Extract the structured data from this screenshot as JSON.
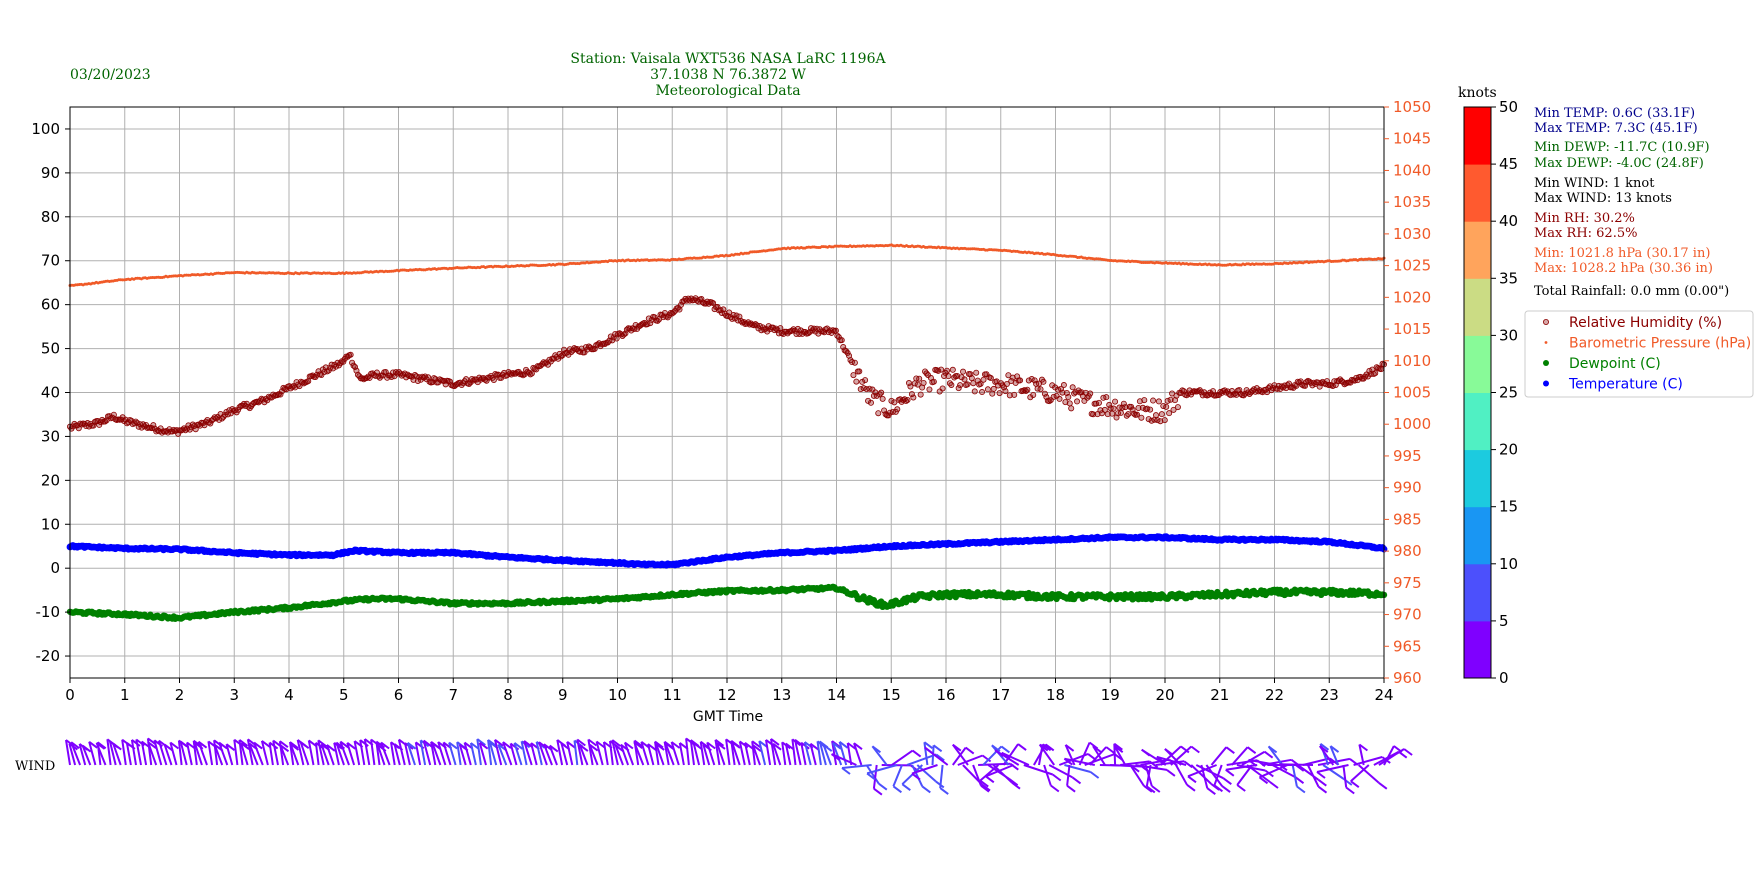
{
  "date": "03/20/2023",
  "header": {
    "line1": "Station:  Vaisala WXT536  NASA LaRC 1196A",
    "line2": "37.1038 N 76.3872 W",
    "line3": "Meteorological Data"
  },
  "stats": {
    "min_temp": "Min TEMP: 0.6C (33.1F)",
    "max_temp": "Max TEMP: 7.3C (45.1F)",
    "min_dewp": "Min DEWP: -11.7C (10.9F)",
    "max_dewp": "Max DEWP: -4.0C (24.8F)",
    "min_wind": "Min WIND: 1 knot",
    "max_wind": "Max WIND: 13 knots",
    "min_rh": "Min RH: 30.2%",
    "max_rh": "Max RH: 62.5%",
    "min_press": "Min: 1021.8 hPa (30.17 in)",
    "max_press": "Max: 1028.2 hPa (30.36 in)",
    "rainfall": "Total Rainfall: 0.0 mm (0.00\")"
  },
  "colors": {
    "temperature": "#0000ff",
    "dewpoint": "#008000",
    "humidity": "#8b0000",
    "pressure": "#f05a28",
    "temp_text": "#00008b",
    "dewp_text": "#006400",
    "rh_text": "#8b0000",
    "press_text": "#f05a28",
    "header_text": "#006400"
  },
  "wind_label": "WIND",
  "colorbar": {
    "title": "knots",
    "ticks": [
      "0",
      "5",
      "10",
      "15",
      "20",
      "25",
      "30",
      "35",
      "40",
      "45",
      "50"
    ],
    "colors": [
      "#7f00ff",
      "#4c50fc",
      "#1996f3",
      "#1ccbdf",
      "#50f0c3",
      "#88fa98",
      "#cbdc84",
      "#ffa45c",
      "#ff5a2f",
      "#ff0000"
    ]
  },
  "chart_data": {
    "type": "scatter",
    "xlabel": "GMT Time",
    "x_ticks": [
      "0",
      "1",
      "2",
      "3",
      "4",
      "5",
      "6",
      "7",
      "8",
      "9",
      "10",
      "11",
      "12",
      "13",
      "14",
      "15",
      "16",
      "17",
      "18",
      "19",
      "20",
      "21",
      "22",
      "23",
      "24"
    ],
    "xlim": [
      0,
      24
    ],
    "left_ylim": [
      -25,
      105
    ],
    "left_ticks": [
      "-20",
      "-10",
      "0",
      "10",
      "20",
      "30",
      "40",
      "50",
      "60",
      "70",
      "80",
      "90",
      "100"
    ],
    "right_ylim": [
      960,
      1050
    ],
    "right_ticks": [
      "960",
      "965",
      "970",
      "975",
      "980",
      "985",
      "990",
      "995",
      "1000",
      "1005",
      "1010",
      "1015",
      "1020",
      "1025",
      "1030",
      "1035",
      "1040",
      "1045",
      "1050"
    ],
    "grid": true,
    "legend_position": "right",
    "series": [
      {
        "name": "Relative Humidity (%)",
        "axis": "left",
        "marker": "hollow-circle",
        "hours": [
          0,
          0.5,
          0.8,
          1,
          1.5,
          1.9,
          2.5,
          3,
          3.5,
          4,
          4.5,
          5,
          5.1,
          5.3,
          5.6,
          6,
          6.5,
          7,
          7.5,
          8,
          8.5,
          9,
          9.5,
          10,
          10.5,
          11,
          11.3,
          11.7,
          12,
          12.5,
          13,
          13.5,
          14,
          14.3,
          14.6,
          15,
          15.5,
          16,
          16.5,
          17,
          17.5,
          18,
          18.5,
          19,
          19.5,
          20,
          20.3,
          21,
          21.5,
          22,
          22.5,
          23,
          23.5,
          24
        ],
        "values": [
          32,
          33,
          34.5,
          33.5,
          32,
          31,
          33,
          36,
          38,
          41,
          44,
          47,
          49,
          43,
          44,
          44,
          43,
          42,
          43,
          44,
          45,
          49,
          50,
          53,
          56,
          58,
          61.5,
          60,
          58,
          55,
          54,
          54,
          54,
          46,
          39,
          36,
          42,
          43,
          42,
          42,
          41,
          40,
          38,
          37,
          36,
          36,
          40,
          40,
          40,
          41,
          42,
          42,
          43,
          46
        ]
      },
      {
        "name": "Barometric Pressure (hPa)",
        "axis": "right",
        "marker": "small-dot",
        "hours": [
          0,
          1,
          2,
          3,
          4,
          5,
          6,
          7,
          8,
          9,
          10,
          11,
          12,
          13,
          14,
          15,
          16,
          17,
          18,
          19,
          20,
          21,
          22,
          23,
          24
        ],
        "values": [
          1021.8,
          1022.8,
          1023.4,
          1023.9,
          1023.8,
          1023.8,
          1024.2,
          1024.6,
          1024.9,
          1025.2,
          1025.8,
          1025.9,
          1026.6,
          1027.7,
          1028.0,
          1028.2,
          1027.8,
          1027.4,
          1026.7,
          1025.8,
          1025.4,
          1025.1,
          1025.3,
          1025.7,
          1026.1
        ]
      },
      {
        "name": "Dewpoint (C)",
        "axis": "left",
        "marker": "filled-dot",
        "hours": [
          0,
          1,
          2,
          3,
          4,
          5,
          5.5,
          6,
          7,
          8,
          9,
          10,
          11,
          12,
          13,
          14,
          14.5,
          14.9,
          15.5,
          16,
          17,
          18,
          19,
          20,
          21,
          22,
          23,
          24
        ],
        "values": [
          -10,
          -10.5,
          -11.3,
          -10,
          -9,
          -7.5,
          -7,
          -7,
          -8,
          -8,
          -7.5,
          -7,
          -6,
          -5.2,
          -5,
          -4.5,
          -7,
          -8.5,
          -6.5,
          -6,
          -6,
          -6.5,
          -6.5,
          -6.5,
          -6,
          -5.5,
          -5.5,
          -5.8
        ]
      },
      {
        "name": "Temperature (C)",
        "axis": "left",
        "marker": "filled-dot",
        "hours": [
          0,
          1,
          2,
          3,
          4,
          4.8,
          5.2,
          6,
          7,
          8,
          9,
          10,
          10.5,
          11,
          12,
          13,
          14,
          15,
          16,
          17,
          18,
          19,
          20,
          21,
          22,
          23,
          24
        ],
        "values": [
          5,
          4.5,
          4.3,
          3.5,
          3,
          3,
          4,
          3.5,
          3.5,
          2.5,
          1.8,
          1.2,
          0.8,
          0.8,
          2.5,
          3.5,
          4,
          5,
          5.5,
          6,
          6.5,
          7,
          7,
          6.5,
          6.5,
          6,
          4.5
        ]
      }
    ],
    "wind_knots_by_hour": [
      3,
      3,
      3,
      3,
      3,
      3,
      4,
      5,
      5,
      4,
      3,
      3,
      4,
      5,
      6,
      6,
      4,
      4,
      4,
      3,
      3,
      4,
      5,
      4,
      3
    ]
  }
}
